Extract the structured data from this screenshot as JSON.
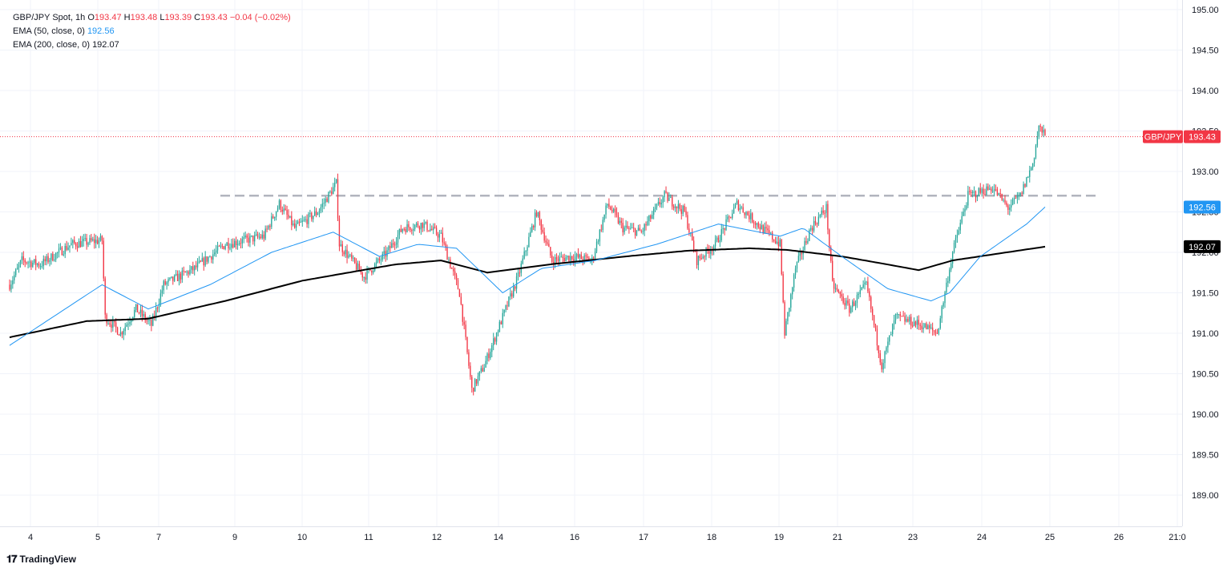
{
  "legend": {
    "symbol": "GBP/JPY Spot, 1h",
    "open_label": "O",
    "open": "193.47",
    "high_label": "H",
    "high": "193.48",
    "low_label": "L",
    "low": "193.39",
    "close_label": "C",
    "close": "193.43",
    "change": "−0.04 (−0.02%)",
    "ema50_label": "EMA (50, close, 0)",
    "ema50_value": "192.56",
    "ema200_label": "EMA (200, close, 0)",
    "ema200_value": "192.07"
  },
  "branding": {
    "logo_icon": "tradingview-logo-icon",
    "name": "TradingView"
  },
  "colors": {
    "up": "#26a69a",
    "down": "#f23645",
    "ema50": "#2196f3",
    "ema200": "#000000",
    "resistance": "#b2b5be",
    "grid": "#f0f3fa",
    "price_badge": "#f23645"
  },
  "chart_data": {
    "type": "candlestick",
    "title": "GBP/JPY Spot, 1h",
    "y_axis": {
      "min": 188.6,
      "max": 195.0,
      "side": "right",
      "ticks": [
        "195.00",
        "194.50",
        "194.00",
        "193.50",
        "193.00",
        "192.50",
        "192.00",
        "191.50",
        "191.00",
        "190.50",
        "190.00",
        "189.50",
        "189.00"
      ]
    },
    "x_axis": {
      "ticks": [
        "4",
        "5",
        "7",
        "9",
        "10",
        "11",
        "12",
        "14",
        "16",
        "17",
        "18",
        "19",
        "21",
        "23",
        "24",
        "25",
        "26",
        "21:0"
      ]
    },
    "grid": true,
    "price_labels": [
      {
        "name": "GBP/JPY",
        "value": "193.43",
        "price": 193.43,
        "color": "#f23645"
      },
      {
        "name": "",
        "value": "192.56",
        "price": 192.56,
        "color": "#2196f3"
      },
      {
        "name": "",
        "value": "192.07",
        "price": 192.07,
        "color": "#000000"
      }
    ],
    "last_price_line": 193.43,
    "resistance_level": 192.7,
    "anchors": [
      {
        "t": 0,
        "c": 191.6
      },
      {
        "t": 8,
        "c": 191.9
      },
      {
        "t": 20,
        "c": 191.85
      },
      {
        "t": 40,
        "c": 192.1
      },
      {
        "t": 60,
        "c": 192.15
      },
      {
        "t": 62,
        "c": 191.2
      },
      {
        "t": 72,
        "c": 191.0
      },
      {
        "t": 82,
        "c": 191.3
      },
      {
        "t": 92,
        "c": 191.1
      },
      {
        "t": 100,
        "c": 191.6
      },
      {
        "t": 120,
        "c": 191.8
      },
      {
        "t": 140,
        "c": 192.1
      },
      {
        "t": 165,
        "c": 192.2
      },
      {
        "t": 175,
        "c": 192.6
      },
      {
        "t": 185,
        "c": 192.3
      },
      {
        "t": 200,
        "c": 192.5
      },
      {
        "t": 212,
        "c": 192.85
      },
      {
        "t": 214,
        "c": 192.1
      },
      {
        "t": 230,
        "c": 191.7
      },
      {
        "t": 245,
        "c": 192.0
      },
      {
        "t": 255,
        "c": 192.3
      },
      {
        "t": 268,
        "c": 192.35
      },
      {
        "t": 280,
        "c": 192.2
      },
      {
        "t": 292,
        "c": 191.5
      },
      {
        "t": 300,
        "c": 190.3
      },
      {
        "t": 308,
        "c": 190.6
      },
      {
        "t": 320,
        "c": 191.2
      },
      {
        "t": 330,
        "c": 191.7
      },
      {
        "t": 342,
        "c": 192.5
      },
      {
        "t": 352,
        "c": 191.9
      },
      {
        "t": 365,
        "c": 191.95
      },
      {
        "t": 378,
        "c": 191.9
      },
      {
        "t": 388,
        "c": 192.6
      },
      {
        "t": 398,
        "c": 192.3
      },
      {
        "t": 410,
        "c": 192.25
      },
      {
        "t": 425,
        "c": 192.7
      },
      {
        "t": 438,
        "c": 192.5
      },
      {
        "t": 446,
        "c": 191.9
      },
      {
        "t": 458,
        "c": 192.1
      },
      {
        "t": 472,
        "c": 192.6
      },
      {
        "t": 488,
        "c": 192.3
      },
      {
        "t": 500,
        "c": 192.1
      },
      {
        "t": 503,
        "c": 191.0
      },
      {
        "t": 510,
        "c": 191.8
      },
      {
        "t": 520,
        "c": 192.3
      },
      {
        "t": 530,
        "c": 192.55
      },
      {
        "t": 534,
        "c": 191.6
      },
      {
        "t": 545,
        "c": 191.3
      },
      {
        "t": 556,
        "c": 191.6
      },
      {
        "t": 566,
        "c": 190.6
      },
      {
        "t": 575,
        "c": 191.2
      },
      {
        "t": 592,
        "c": 191.1
      },
      {
        "t": 602,
        "c": 191.0
      },
      {
        "t": 612,
        "c": 192.0
      },
      {
        "t": 622,
        "c": 192.7
      },
      {
        "t": 638,
        "c": 192.8
      },
      {
        "t": 648,
        "c": 192.55
      },
      {
        "t": 656,
        "c": 192.7
      },
      {
        "t": 664,
        "c": 193.1
      },
      {
        "t": 668,
        "c": 193.55
      },
      {
        "t": 672,
        "c": 193.43
      }
    ],
    "ema50_anchors": [
      {
        "t": 0,
        "c": 190.85
      },
      {
        "t": 60,
        "c": 191.6
      },
      {
        "t": 90,
        "c": 191.3
      },
      {
        "t": 130,
        "c": 191.6
      },
      {
        "t": 170,
        "c": 192.0
      },
      {
        "t": 210,
        "c": 192.25
      },
      {
        "t": 240,
        "c": 191.95
      },
      {
        "t": 265,
        "c": 192.1
      },
      {
        "t": 290,
        "c": 192.05
      },
      {
        "t": 320,
        "c": 191.5
      },
      {
        "t": 345,
        "c": 191.8
      },
      {
        "t": 380,
        "c": 191.9
      },
      {
        "t": 420,
        "c": 192.1
      },
      {
        "t": 460,
        "c": 192.35
      },
      {
        "t": 500,
        "c": 192.2
      },
      {
        "t": 515,
        "c": 192.3
      },
      {
        "t": 540,
        "c": 191.95
      },
      {
        "t": 570,
        "c": 191.55
      },
      {
        "t": 598,
        "c": 191.4
      },
      {
        "t": 610,
        "c": 191.5
      },
      {
        "t": 630,
        "c": 191.95
      },
      {
        "t": 660,
        "c": 192.35
      },
      {
        "t": 672,
        "c": 192.56
      }
    ],
    "ema200_anchors": [
      {
        "t": 0,
        "c": 190.95
      },
      {
        "t": 50,
        "c": 191.15
      },
      {
        "t": 90,
        "c": 191.18
      },
      {
        "t": 140,
        "c": 191.4
      },
      {
        "t": 190,
        "c": 191.65
      },
      {
        "t": 250,
        "c": 191.85
      },
      {
        "t": 280,
        "c": 191.9
      },
      {
        "t": 310,
        "c": 191.75
      },
      {
        "t": 350,
        "c": 191.85
      },
      {
        "t": 400,
        "c": 191.95
      },
      {
        "t": 440,
        "c": 192.02
      },
      {
        "t": 480,
        "c": 192.05
      },
      {
        "t": 505,
        "c": 192.03
      },
      {
        "t": 540,
        "c": 191.95
      },
      {
        "t": 570,
        "c": 191.85
      },
      {
        "t": 590,
        "c": 191.78
      },
      {
        "t": 612,
        "c": 191.9
      },
      {
        "t": 640,
        "c": 191.98
      },
      {
        "t": 672,
        "c": 192.07
      }
    ]
  }
}
